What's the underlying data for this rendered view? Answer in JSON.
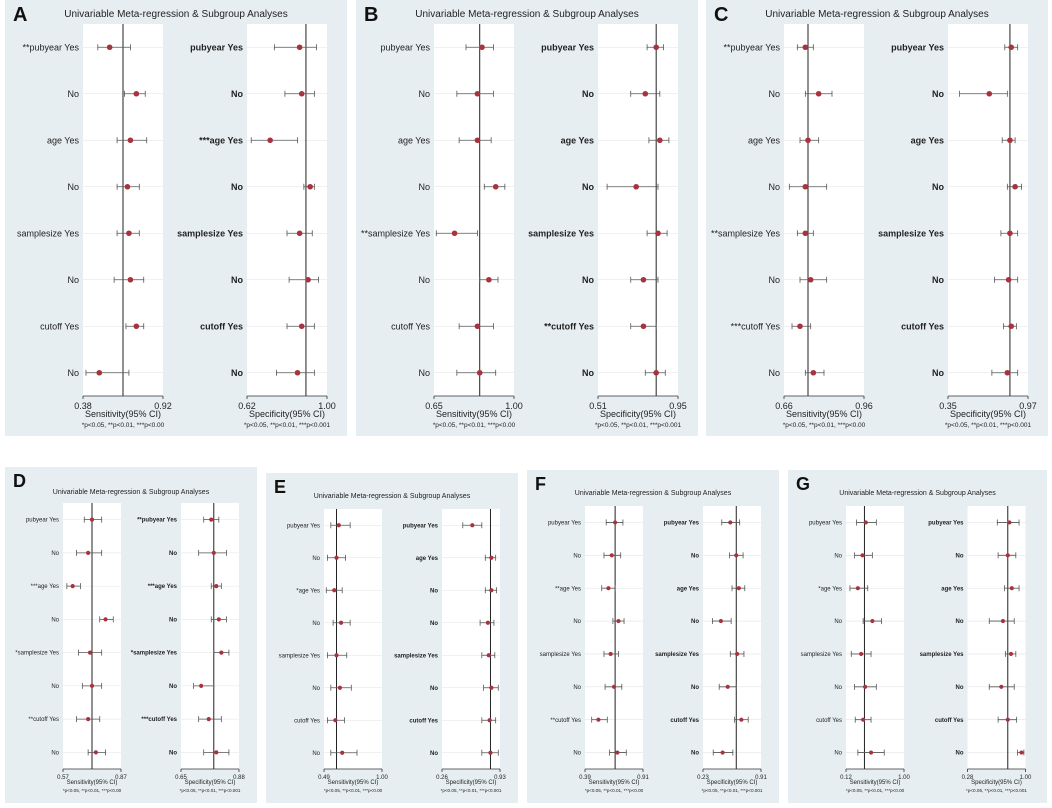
{
  "colors": {
    "panel_bg": "#e6eef1",
    "plot_bg": "#ffffff",
    "marker": "#a8323e",
    "ci_line": "#555555",
    "ref_line": "#222222",
    "grid": "#e3e3e3"
  },
  "chart_data": [
    {
      "panel": "A",
      "type": "forest",
      "title": "Univariable Meta-regression & Subgroup Analyses",
      "footnote": "*p<0.05, **p<0.01, ***p<0.00",
      "footnote_right": "*p<0.05, **p<0.01, ***p<0.001",
      "sensitivity": {
        "xlabel": "Sensitivity(95% CI)",
        "xlim": [
          0.38,
          0.92
        ],
        "ticks": [
          "0.38",
          "0.92"
        ],
        "ref": 0.65,
        "labels": [
          "**pubyear Yes",
          "No",
          "age Yes",
          "No",
          "samplesize Yes",
          "No",
          "cutoff Yes",
          "No"
        ],
        "est": [
          0.56,
          0.74,
          0.7,
          0.68,
          0.69,
          0.7,
          0.74,
          0.49
        ],
        "lo": [
          0.48,
          0.66,
          0.61,
          0.61,
          0.61,
          0.59,
          0.67,
          0.4
        ],
        "hi": [
          0.7,
          0.8,
          0.81,
          0.76,
          0.76,
          0.79,
          0.79,
          0.69
        ]
      },
      "specificity": {
        "xlabel": "Specificity(95% CI)",
        "xlim": [
          0.62,
          1.0
        ],
        "ticks": [
          "0.62",
          "1.00"
        ],
        "ref": 0.9,
        "labels": [
          "pubyear Yes",
          "No",
          "***age Yes",
          "No",
          "samplesize Yes",
          "No",
          "cutoff Yes",
          "No"
        ],
        "est": [
          0.87,
          0.88,
          0.73,
          0.92,
          0.87,
          0.91,
          0.88,
          0.86
        ],
        "lo": [
          0.75,
          0.8,
          0.64,
          0.89,
          0.81,
          0.82,
          0.81,
          0.76
        ],
        "hi": [
          0.95,
          0.94,
          0.86,
          0.94,
          0.93,
          0.96,
          0.94,
          0.94
        ]
      }
    },
    {
      "panel": "B",
      "type": "forest",
      "title": "Univariable Meta-regression & Subgroup Analyses",
      "footnote": "*p<0.05, **p<0.01, ***p<0.00",
      "footnote_right": "*p<0.05, **p<0.01, ***p<0.001",
      "sensitivity": {
        "xlabel": "Sensitivity(95% CI)",
        "xlim": [
          0.65,
          1.0
        ],
        "ticks": [
          "0.65",
          "1.00"
        ],
        "ref": 0.85,
        "labels": [
          "pubyear Yes",
          "No",
          "age Yes",
          "No",
          "**samplesize Yes",
          "No",
          "cutoff Yes",
          "No"
        ],
        "est": [
          0.86,
          0.84,
          0.84,
          0.92,
          0.74,
          0.89,
          0.84,
          0.85
        ],
        "lo": [
          0.79,
          0.75,
          0.76,
          0.87,
          0.66,
          0.85,
          0.76,
          0.75
        ],
        "hi": [
          0.91,
          0.91,
          0.9,
          0.96,
          0.84,
          0.93,
          0.91,
          0.92
        ]
      },
      "specificity": {
        "xlabel": "Specificity(95% CI)",
        "xlim": [
          0.51,
          0.95
        ],
        "ticks": [
          "0.51",
          "0.95"
        ],
        "ref": 0.83,
        "labels": [
          "pubyear Yes",
          "No",
          "age Yes",
          "No",
          "samplesize Yes",
          "No",
          "**cutoff Yes",
          "No"
        ],
        "est": [
          0.83,
          0.77,
          0.85,
          0.72,
          0.84,
          0.76,
          0.76,
          0.83
        ],
        "lo": [
          0.78,
          0.69,
          0.79,
          0.56,
          0.78,
          0.69,
          0.69,
          0.77
        ],
        "hi": [
          0.87,
          0.85,
          0.9,
          0.84,
          0.89,
          0.84,
          0.83,
          0.88
        ]
      }
    },
    {
      "panel": "C",
      "type": "forest",
      "title": "Univariable Meta-regression & Subgroup Analyses",
      "footnote": "*p<0.05, **p<0.01, ***p<0.00",
      "footnote_right": "*p<0.05, **p<0.01, ***p<0.001",
      "sensitivity": {
        "xlabel": "Sensitivity(95% CI)",
        "xlim": [
          0.66,
          0.96
        ],
        "ticks": [
          "0.66",
          "0.96"
        ],
        "ref": 0.75,
        "labels": [
          "**pubyear Yes",
          "No",
          "age Yes",
          "No",
          "**samplesize Yes",
          "No",
          "***cutoff Yes",
          "No"
        ],
        "est": [
          0.74,
          0.79,
          0.75,
          0.74,
          0.74,
          0.76,
          0.72,
          0.77
        ],
        "lo": [
          0.71,
          0.74,
          0.72,
          0.68,
          0.71,
          0.72,
          0.69,
          0.74
        ],
        "hi": [
          0.77,
          0.84,
          0.79,
          0.82,
          0.77,
          0.82,
          0.76,
          0.81
        ]
      },
      "specificity": {
        "xlabel": "Specificity(95% CI)",
        "xlim": [
          0.35,
          0.97
        ],
        "ticks": [
          "0.35",
          "0.97"
        ],
        "ref": 0.83,
        "labels": [
          "pubyear Yes",
          "No",
          "age Yes",
          "No",
          "samplesize Yes",
          "No",
          "cutoff Yes",
          "No"
        ],
        "est": [
          0.84,
          0.67,
          0.83,
          0.87,
          0.83,
          0.82,
          0.84,
          0.81
        ],
        "lo": [
          0.79,
          0.44,
          0.77,
          0.81,
          0.76,
          0.71,
          0.78,
          0.69
        ],
        "hi": [
          0.89,
          0.81,
          0.87,
          0.92,
          0.89,
          0.89,
          0.88,
          0.89
        ]
      }
    },
    {
      "panel": "D",
      "type": "forest",
      "title": "Univariable Meta-regression & Subgroup Analyses",
      "footnote": "*p<0.05, **p<0.01, ***p<0.00",
      "footnote_right": "*p<0.05, **p<0.01, ***p<0.001",
      "sensitivity": {
        "xlabel": "Sensitivity(95% CI)",
        "xlim": [
          0.57,
          0.87
        ],
        "ticks": [
          "0.57",
          "0.87"
        ],
        "ref": 0.72,
        "labels": [
          "pubyear Yes",
          "No",
          "***age Yes",
          "No",
          "*samplesize Yes",
          "No",
          "**cutoff Yes",
          "No"
        ],
        "est": [
          0.72,
          0.7,
          0.62,
          0.79,
          0.71,
          0.72,
          0.7,
          0.74
        ],
        "lo": [
          0.68,
          0.64,
          0.59,
          0.76,
          0.65,
          0.67,
          0.64,
          0.7
        ],
        "hi": [
          0.77,
          0.77,
          0.66,
          0.83,
          0.77,
          0.77,
          0.76,
          0.79
        ]
      },
      "specificity": {
        "xlabel": "Specificity(95% CI)",
        "xlim": [
          0.65,
          0.88
        ],
        "ticks": [
          "0.65",
          "0.88"
        ],
        "ref": 0.78,
        "labels": [
          "**pubyear Yes",
          "No",
          "***age Yes",
          "No",
          "*samplesize Yes",
          "No",
          "***cutoff Yes",
          "No"
        ],
        "est": [
          0.77,
          0.78,
          0.79,
          0.8,
          0.81,
          0.73,
          0.76,
          0.79
        ],
        "lo": [
          0.74,
          0.72,
          0.77,
          0.77,
          0.78,
          0.7,
          0.72,
          0.74
        ],
        "hi": [
          0.8,
          0.83,
          0.81,
          0.83,
          0.84,
          0.78,
          0.81,
          0.84
        ]
      }
    },
    {
      "panel": "E",
      "type": "forest",
      "title": "Univariable Meta-regression & Subgroup Analyses",
      "footnote": "*p<0.05, **p<0.01, ***p<0.00",
      "footnote_right": "*p<0.05, **p<0.01, ***p<0.001",
      "sensitivity": {
        "xlabel": "Sensitivity(95% CI)",
        "xlim": [
          0.49,
          1.0
        ],
        "ticks": [
          "0.49",
          "1.00"
        ],
        "ref": 0.6,
        "labels": [
          "pubyear Yes",
          "No",
          "*age Yes",
          "No",
          "samplesize Yes",
          "No",
          "cutoff Yes",
          "No"
        ],
        "est": [
          0.62,
          0.6,
          0.58,
          0.64,
          0.6,
          0.63,
          0.59,
          0.65
        ],
        "lo": [
          0.55,
          0.52,
          0.51,
          0.57,
          0.52,
          0.55,
          0.52,
          0.55
        ],
        "hi": [
          0.72,
          0.68,
          0.65,
          0.72,
          0.69,
          0.73,
          0.67,
          0.78
        ]
      },
      "specificity": {
        "xlabel": "Specificity(95% CI)",
        "xlim": [
          0.26,
          0.93
        ],
        "ticks": [
          "0.26",
          "0.93"
        ],
        "ref": 0.82,
        "labels": [
          "pubyear Yes",
          "age Yes",
          "No",
          "No",
          "samplesize Yes",
          "No",
          "cutoff Yes",
          "No"
        ],
        "est": [
          0.61,
          0.83,
          0.83,
          0.79,
          0.8,
          0.83,
          0.81,
          0.82
        ],
        "lo": [
          0.5,
          0.76,
          0.76,
          0.7,
          0.72,
          0.74,
          0.72,
          0.72
        ],
        "hi": [
          0.72,
          0.88,
          0.89,
          0.86,
          0.87,
          0.91,
          0.88,
          0.91
        ]
      }
    },
    {
      "panel": "F",
      "type": "forest",
      "title": "Univariable Meta-regression & Subgroup Analyses",
      "footnote": "*p<0.05, **p<0.01, ***p<0.00",
      "footnote_right": "*p<0.05, **p<0.01, ***p<0.001",
      "sensitivity": {
        "xlabel": "Sensitivity(95% CI)",
        "xlim": [
          0.39,
          0.91
        ],
        "ticks": [
          "0.39",
          "0.91"
        ],
        "ref": 0.66,
        "labels": [
          "pubyear Yes",
          "No",
          "**age Yes",
          "No",
          "samplesize Yes",
          "No",
          "**cutoff Yes",
          "No"
        ],
        "est": [
          0.66,
          0.63,
          0.6,
          0.69,
          0.62,
          0.65,
          0.51,
          0.68
        ],
        "lo": [
          0.58,
          0.56,
          0.54,
          0.64,
          0.56,
          0.57,
          0.45,
          0.61
        ],
        "hi": [
          0.73,
          0.71,
          0.66,
          0.74,
          0.69,
          0.72,
          0.59,
          0.76
        ]
      },
      "specificity": {
        "xlabel": "Specificity(95% CI)",
        "xlim": [
          0.23,
          0.91
        ],
        "ticks": [
          "0.23",
          "0.91"
        ],
        "ref": 0.62,
        "labels": [
          "pubyear Yes",
          "No",
          "age Yes",
          "No",
          "samplesize Yes",
          "No",
          "cutoff Yes",
          "No"
        ],
        "est": [
          0.55,
          0.62,
          0.65,
          0.44,
          0.63,
          0.52,
          0.68,
          0.46
        ],
        "lo": [
          0.45,
          0.54,
          0.57,
          0.34,
          0.55,
          0.42,
          0.6,
          0.35
        ],
        "hi": [
          0.66,
          0.7,
          0.72,
          0.56,
          0.71,
          0.62,
          0.76,
          0.58
        ]
      }
    },
    {
      "panel": "G",
      "type": "forest",
      "title": "Univariable Meta-regression & Subgroup Analyses",
      "footnote": "*p<0.05, **p<0.01, ***p<0.00",
      "footnote_right": "*p<0.05, **p<0.01, ***p<0.001",
      "sensitivity": {
        "xlabel": "Sensitivity(95% CI)",
        "xlim": [
          0.12,
          1.0
        ],
        "ticks": [
          "0.12",
          "1.00"
        ],
        "ref": 0.4,
        "labels": [
          "pubyear Yes",
          "No",
          "*age Yes",
          "No",
          "samplesize Yes",
          "No",
          "cutoff Yes",
          "No"
        ],
        "est": [
          0.42,
          0.37,
          0.3,
          0.52,
          0.35,
          0.41,
          0.38,
          0.5
        ],
        "lo": [
          0.28,
          0.25,
          0.18,
          0.38,
          0.2,
          0.25,
          0.26,
          0.3
        ],
        "hi": [
          0.58,
          0.52,
          0.45,
          0.66,
          0.5,
          0.58,
          0.5,
          0.7
        ]
      },
      "specificity": {
        "xlabel": "Specificity(95% CI)",
        "xlim": [
          0.28,
          1.0
        ],
        "ticks": [
          "0.28",
          "1.00"
        ],
        "ref": 0.78,
        "labels": [
          "pubyear Yes",
          "No",
          "age Yes",
          "No",
          "samplesize Yes",
          "No",
          "cutoff Yes",
          "No"
        ],
        "est": [
          0.8,
          0.78,
          0.83,
          0.72,
          0.82,
          0.7,
          0.78,
          0.95
        ],
        "lo": [
          0.65,
          0.66,
          0.74,
          0.55,
          0.75,
          0.55,
          0.66,
          0.9
        ],
        "hi": [
          0.92,
          0.88,
          0.92,
          0.86,
          0.88,
          0.86,
          0.89,
          0.98
        ]
      }
    }
  ]
}
